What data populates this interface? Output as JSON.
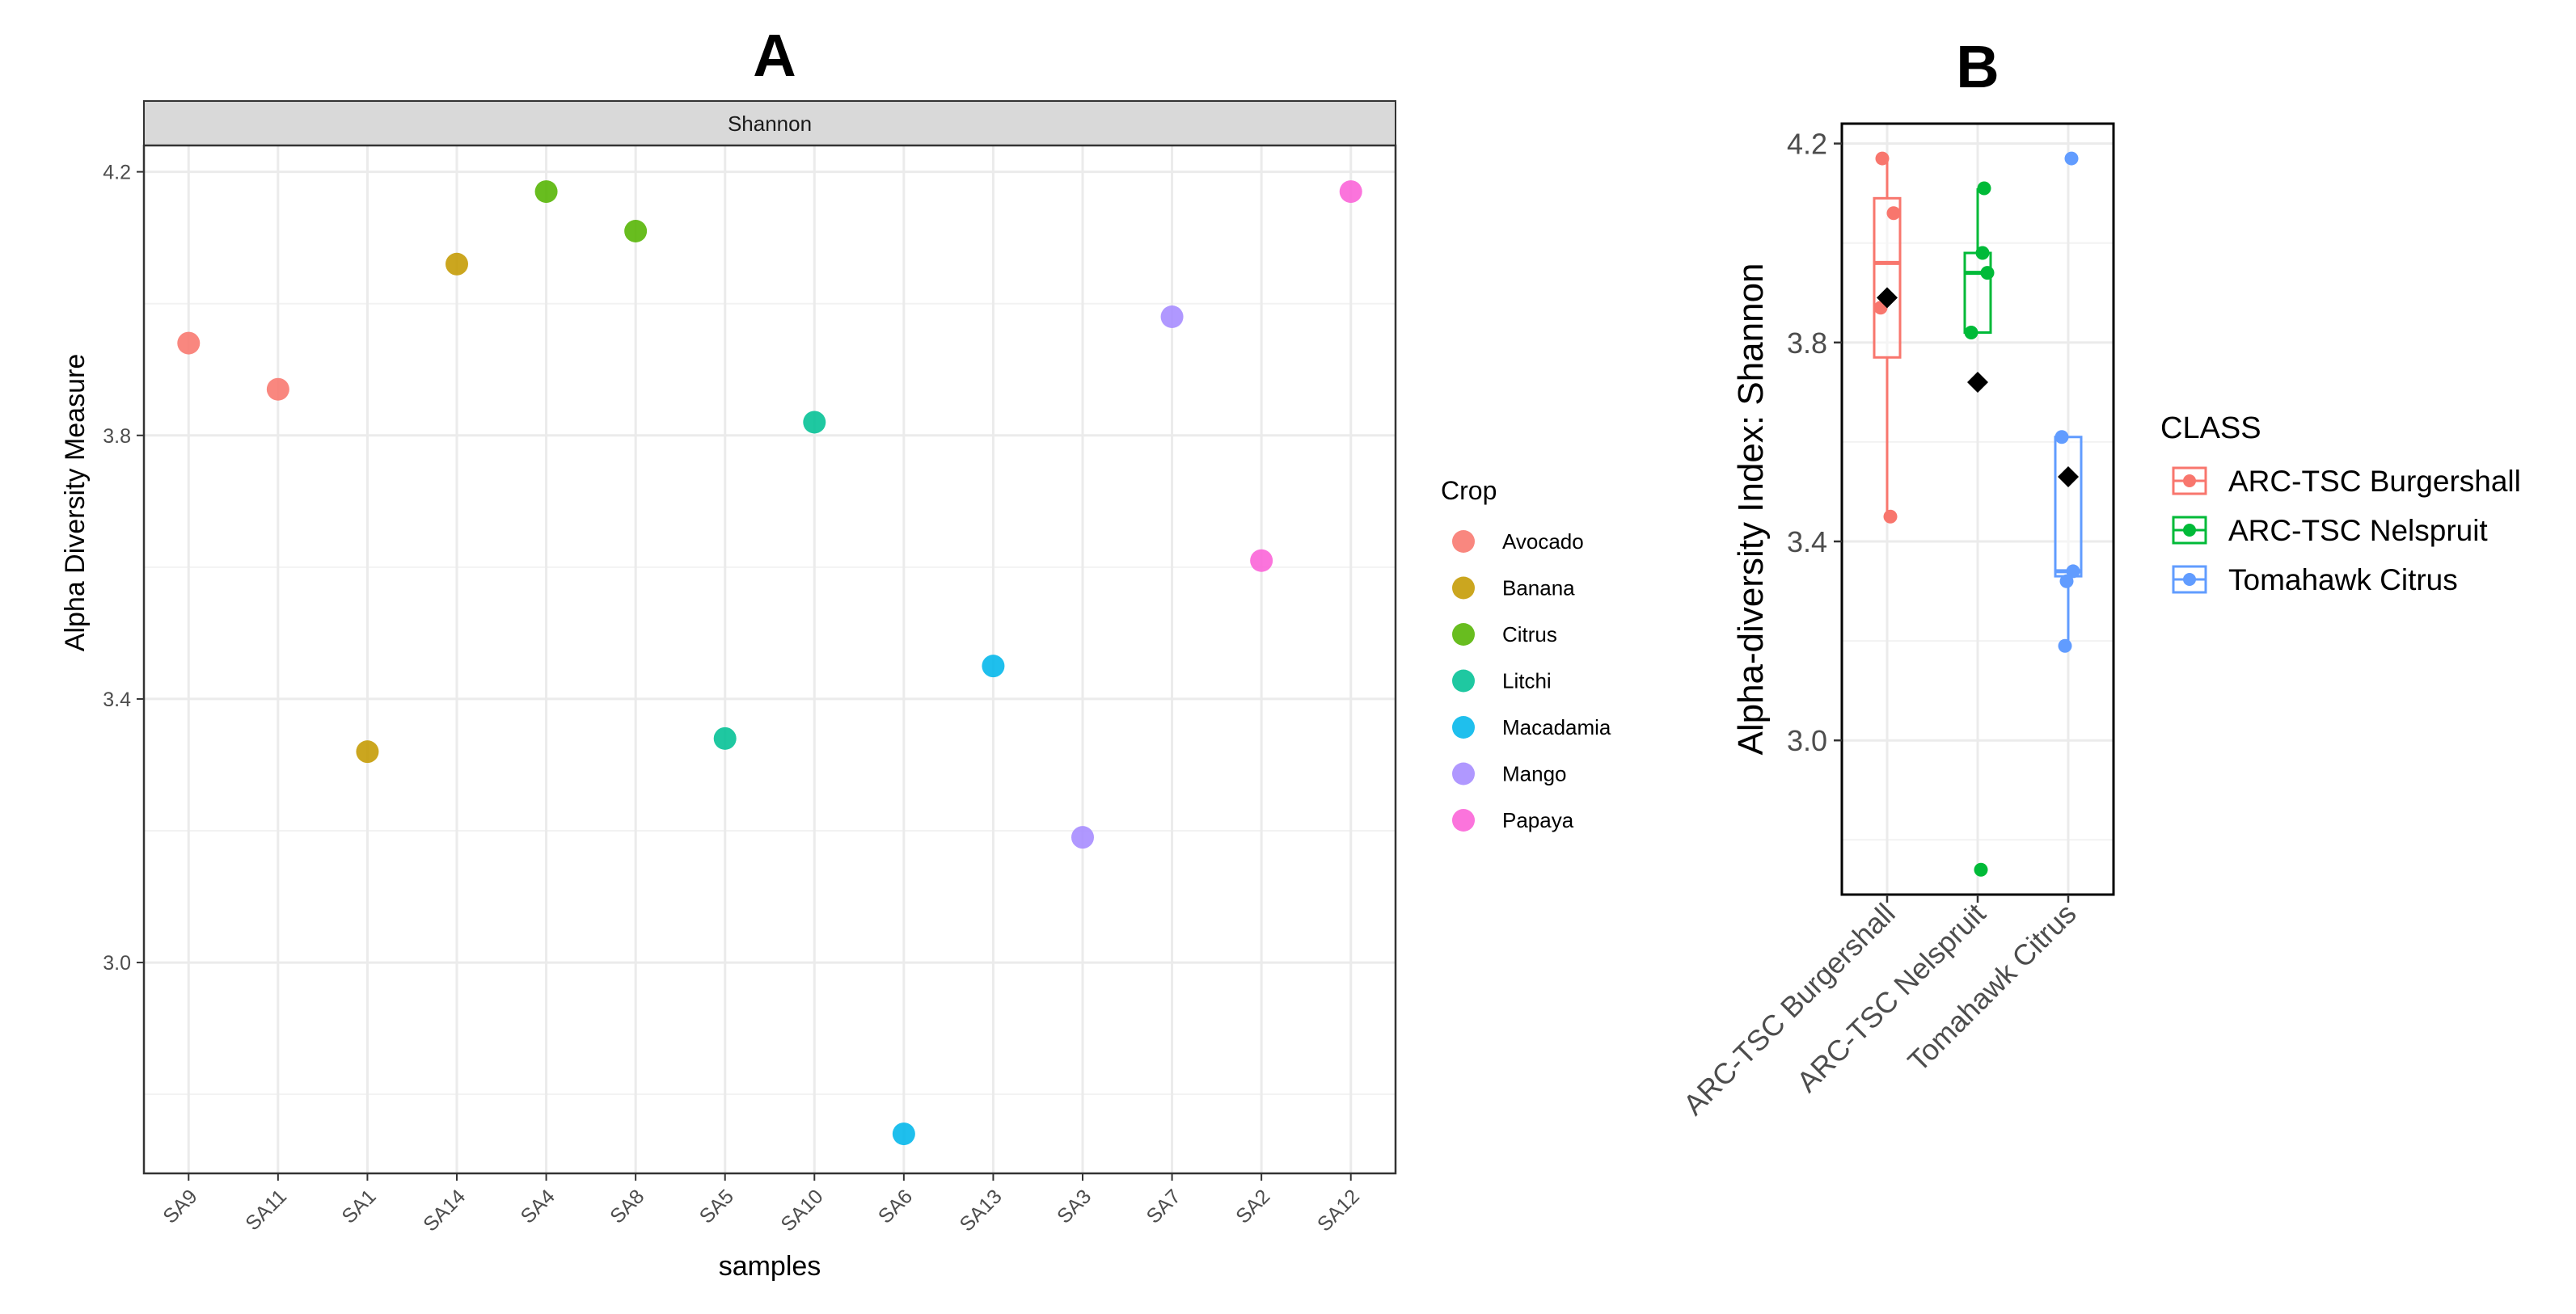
{
  "chart_data": [
    {
      "panel": "A",
      "type": "scatter",
      "title": "A",
      "facet_label": "Shannon",
      "xlabel": "samples",
      "ylabel": "Alpha Diversity Measure",
      "categories": [
        "SA9",
        "SA11",
        "SA1",
        "SA14",
        "SA4",
        "SA8",
        "SA5",
        "SA10",
        "SA6",
        "SA13",
        "SA3",
        "SA7",
        "SA2",
        "SA12"
      ],
      "ylim": [
        2.68,
        4.24
      ],
      "yticks": [
        3.0,
        3.4,
        3.8,
        4.2
      ],
      "ytick_labels": [
        "3.0",
        "3.4",
        "3.8",
        "4.2"
      ],
      "legend_title": "Crop",
      "legend_position": "right",
      "groups": [
        {
          "name": "Avocado",
          "color": "#F8766D"
        },
        {
          "name": "Banana",
          "color": "#C49A00"
        },
        {
          "name": "Citrus",
          "color": "#53B400"
        },
        {
          "name": "Litchi",
          "color": "#00C094"
        },
        {
          "name": "Macadamia",
          "color": "#00B6EB"
        },
        {
          "name": "Mango",
          "color": "#A58AFF"
        },
        {
          "name": "Papaya",
          "color": "#FB61D7"
        }
      ],
      "points": [
        {
          "sample": "SA9",
          "value": 3.94,
          "group": "Avocado"
        },
        {
          "sample": "SA11",
          "value": 3.87,
          "group": "Avocado"
        },
        {
          "sample": "SA1",
          "value": 3.32,
          "group": "Banana"
        },
        {
          "sample": "SA14",
          "value": 4.06,
          "group": "Banana"
        },
        {
          "sample": "SA4",
          "value": 4.17,
          "group": "Citrus"
        },
        {
          "sample": "SA8",
          "value": 4.11,
          "group": "Citrus"
        },
        {
          "sample": "SA5",
          "value": 3.34,
          "group": "Litchi"
        },
        {
          "sample": "SA10",
          "value": 3.82,
          "group": "Litchi"
        },
        {
          "sample": "SA6",
          "value": 2.74,
          "group": "Macadamia"
        },
        {
          "sample": "SA13",
          "value": 3.45,
          "group": "Macadamia"
        },
        {
          "sample": "SA3",
          "value": 3.19,
          "group": "Mango"
        },
        {
          "sample": "SA7",
          "value": 3.98,
          "group": "Mango"
        },
        {
          "sample": "SA2",
          "value": 3.61,
          "group": "Papaya"
        },
        {
          "sample": "SA12",
          "value": 4.17,
          "group": "Papaya"
        }
      ]
    },
    {
      "panel": "B",
      "type": "box",
      "title": "B",
      "xlabel": "",
      "ylabel": "Alpha-diversity Index: Shannon",
      "categories": [
        "ARC-TSC Burgershall",
        "ARC-TSC Nelspruit",
        "Tomahawk Citrus"
      ],
      "ylim": [
        2.69,
        4.24
      ],
      "yticks": [
        3.0,
        3.4,
        3.8,
        4.2
      ],
      "ytick_labels": [
        "3.0",
        "3.4",
        "3.8",
        "4.2"
      ],
      "legend_title": "CLASS",
      "legend_position": "right",
      "series": [
        {
          "name": "ARC-TSC Burgershall",
          "color": "#F8766D",
          "box": {
            "min": 3.45,
            "q1": 3.77,
            "median": 3.96,
            "q3": 4.09,
            "max": 4.17
          },
          "mean": 3.89,
          "points": [
            4.17,
            4.06,
            3.87,
            3.45
          ]
        },
        {
          "name": "ARC-TSC Nelspruit",
          "color": "#00BA38",
          "box": {
            "min": 3.82,
            "q1": 3.82,
            "median": 3.94,
            "q3": 3.98,
            "max": 4.11
          },
          "mean": 3.72,
          "points": [
            4.11,
            3.98,
            3.94,
            3.82,
            2.74
          ]
        },
        {
          "name": "Tomahawk Citrus",
          "color": "#619CFF",
          "box": {
            "min": 3.19,
            "q1": 3.33,
            "median": 3.34,
            "q3": 3.61,
            "max": 3.61
          },
          "mean": 3.53,
          "points": [
            4.17,
            3.61,
            3.34,
            3.32,
            3.19
          ]
        }
      ]
    }
  ]
}
